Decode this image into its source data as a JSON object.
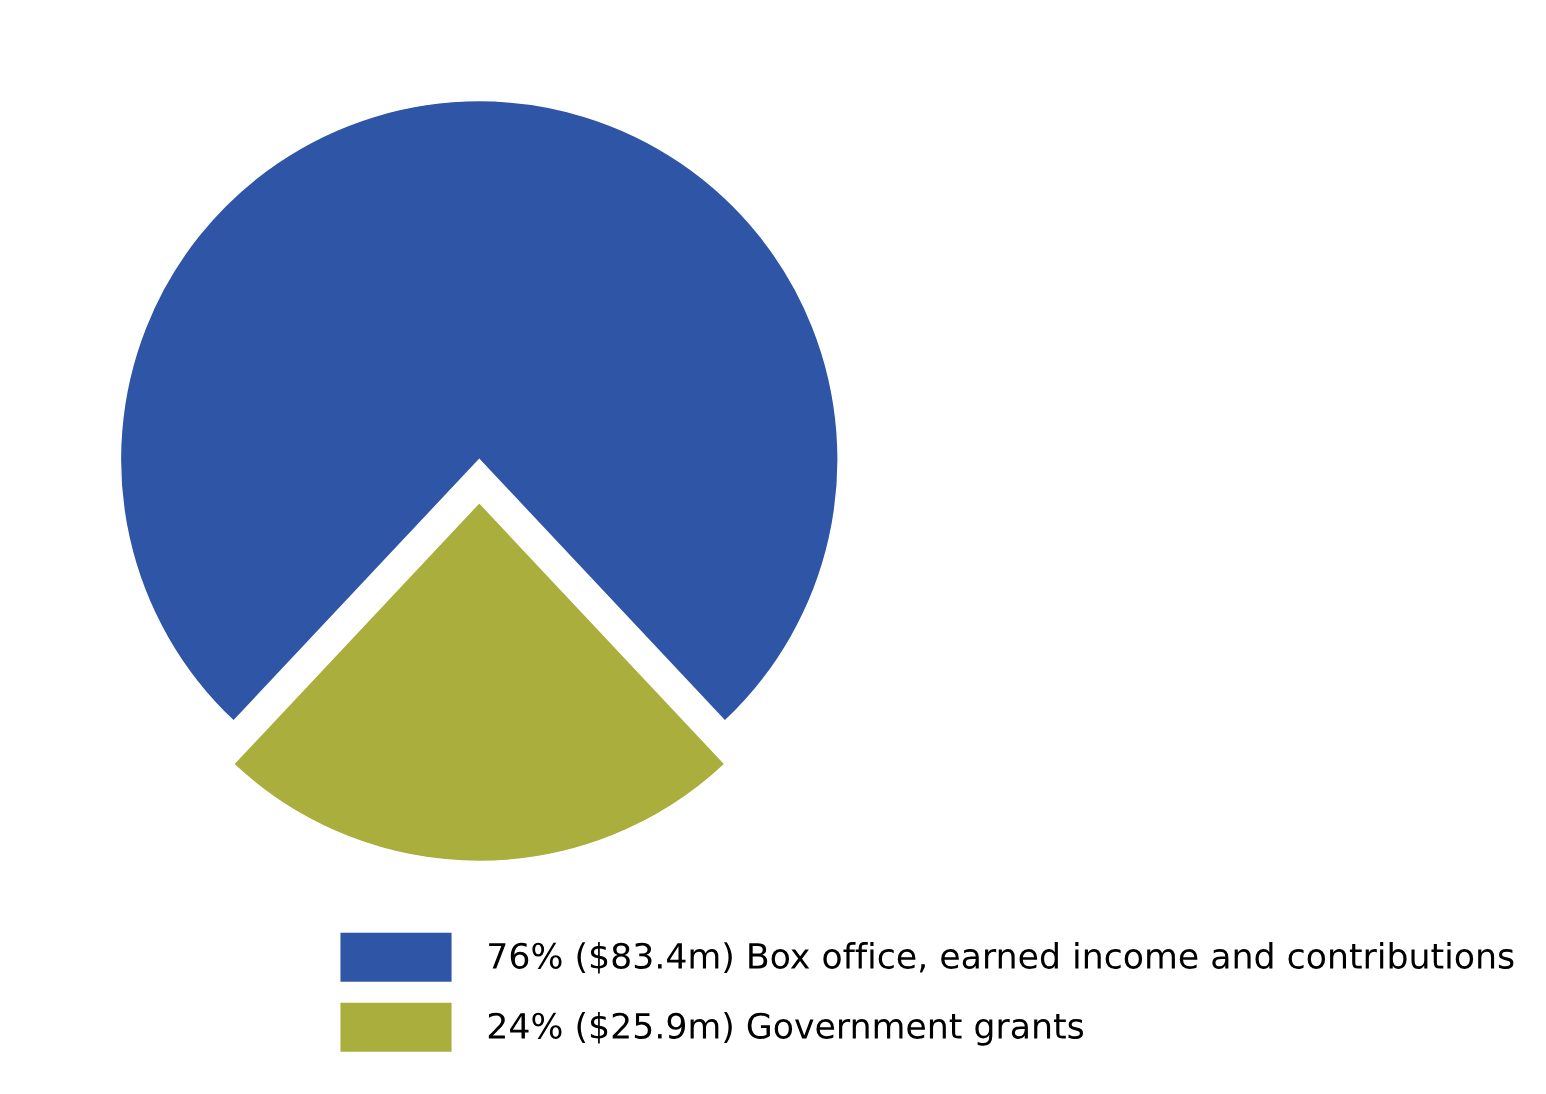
{
  "chart_data": {
    "type": "pie",
    "categories": [
      "76% ($83.4m) Box office, earned income and contributions",
      "24% ($25.9m) Government grants"
    ],
    "values": [
      76,
      24
    ],
    "colors": [
      "#2f56a6",
      "#a9ae3c"
    ],
    "legend": "bottom"
  }
}
